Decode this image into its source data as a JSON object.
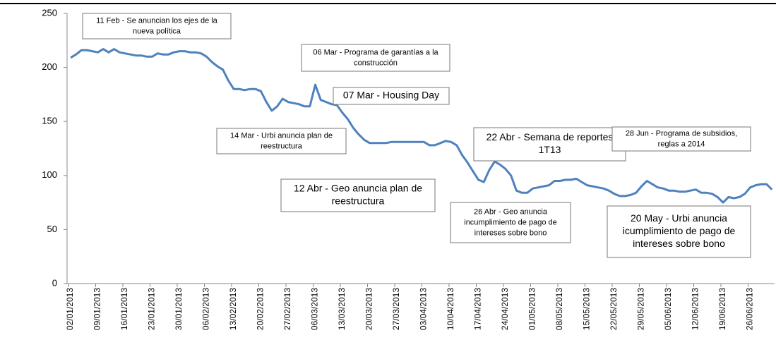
{
  "chart_data": {
    "type": "line",
    "categories": [
      "02/01/2013",
      null,
      null,
      null,
      null,
      "09/01/2013",
      null,
      null,
      null,
      null,
      "16/01/2013",
      null,
      null,
      null,
      null,
      "23/01/2013",
      null,
      null,
      null,
      null,
      "30/01/2013",
      null,
      null,
      null,
      null,
      "06/02/2013",
      null,
      null,
      null,
      null,
      "13/02/2013",
      null,
      null,
      null,
      null,
      "20/02/2013",
      null,
      null,
      null,
      null,
      "27/02/2013",
      null,
      null,
      null,
      null,
      "06/03/2013",
      null,
      null,
      null,
      null,
      "13/03/2013",
      null,
      null,
      null,
      null,
      "20/03/2013",
      null,
      null,
      null,
      null,
      "27/03/2013",
      null,
      null,
      null,
      null,
      "03/04/2013",
      null,
      null,
      null,
      null,
      "10/04/2013",
      null,
      null,
      null,
      null,
      "17/04/2013",
      null,
      null,
      null,
      null,
      "24/04/2013",
      null,
      null,
      null,
      null,
      "01/05/2013",
      null,
      null,
      null,
      null,
      "08/05/2013",
      null,
      null,
      null,
      null,
      "15/05/2013",
      null,
      null,
      null,
      null,
      "22/05/2013",
      null,
      null,
      null,
      null,
      "29/05/2013",
      null,
      null,
      null,
      null,
      "05/06/2013",
      null,
      null,
      null,
      null,
      "12/06/2013",
      null,
      null,
      null,
      null,
      "19/06/2013",
      null,
      null,
      null,
      null,
      "26/06/2013",
      null,
      null,
      null,
      null
    ],
    "values": [
      209,
      212,
      216,
      216,
      215,
      214,
      217,
      214,
      217,
      214,
      213,
      212,
      211,
      211,
      210,
      210,
      213,
      212,
      212,
      214,
      215,
      215,
      214,
      214,
      213,
      210,
      205,
      201,
      198,
      188,
      180,
      180,
      179,
      180,
      180,
      178,
      168,
      160,
      164,
      171,
      168,
      167,
      166,
      164,
      164,
      184,
      170,
      168,
      166,
      165,
      158,
      152,
      144,
      138,
      133,
      130,
      130,
      130,
      130,
      131,
      131,
      131,
      131,
      131,
      131,
      131,
      128,
      128,
      130,
      132,
      131,
      128,
      119,
      112,
      104,
      96,
      94,
      105,
      113,
      110,
      106,
      100,
      86,
      84,
      84,
      88,
      89,
      90,
      91,
      95,
      95,
      96,
      96,
      97,
      94,
      91,
      90,
      89,
      88,
      86,
      83,
      81,
      81,
      82,
      84,
      90,
      95,
      92,
      89,
      88,
      86,
      86,
      85,
      85,
      86,
      87,
      84,
      84,
      83,
      80,
      75,
      80,
      79,
      80,
      83,
      89,
      91,
      92,
      92,
      87
    ],
    "color": "#4f81bd",
    "ylim": [
      0,
      250
    ],
    "yticks": [
      0,
      50,
      100,
      150,
      200,
      250
    ],
    "annotations": [
      {
        "lines": [
          "11 Feb - Se anuncian los ejes de la",
          "nueva política"
        ]
      },
      {
        "lines": [
          "06 Mar - Programa de garantías a la",
          "construcción"
        ]
      },
      {
        "lines": [
          "07 Mar - Housing Day"
        ]
      },
      {
        "lines": [
          "14 Mar - Urbi anuncia plan de",
          "reestructura"
        ]
      },
      {
        "lines": [
          "12 Abr - Geo anuncia plan de",
          "reestructura"
        ]
      },
      {
        "lines": [
          "22 Abr - Semana de reportes",
          "1T13"
        ]
      },
      {
        "lines": [
          "28 Jun - Programa de subsidios,",
          "reglas a 2014"
        ]
      },
      {
        "lines": [
          "26 Abr - Geo anuncia",
          "incumplimiento de pago de",
          "intereses sobre bono"
        ]
      },
      {
        "lines": [
          "20 May - Urbi anuncia",
          "icumplimiento de pago de",
          "intereses sobre bono"
        ]
      }
    ]
  }
}
